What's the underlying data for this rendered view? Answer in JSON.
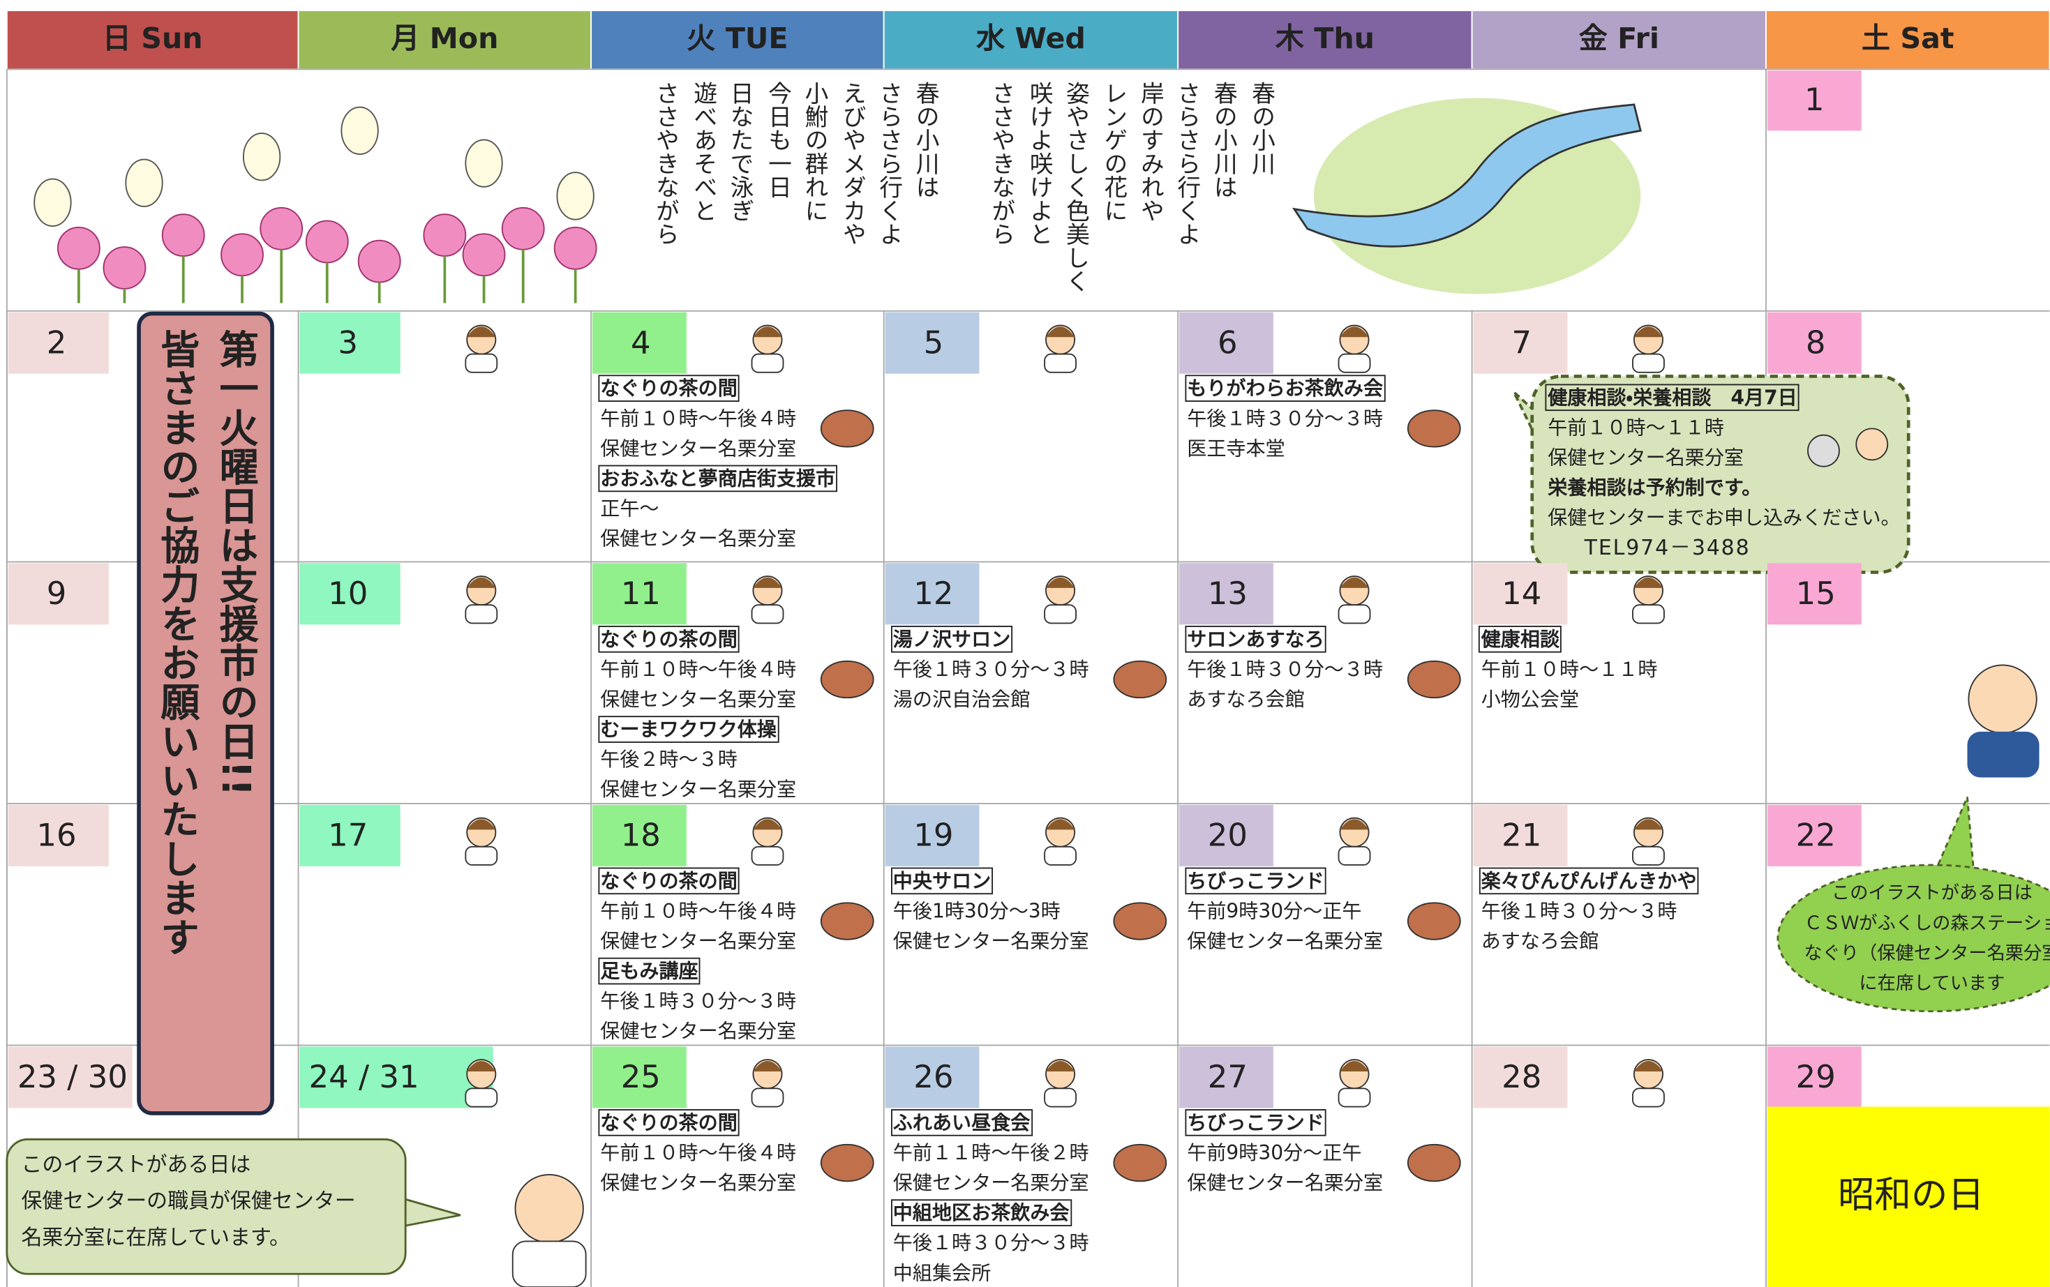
{
  "header": {
    "days": [
      "日 Sun",
      "月 Mon",
      "火 TUE",
      "水 Wed",
      "木 Thu",
      "金 Fri",
      "土 Sat"
    ]
  },
  "poem": {
    "lines": [
      "春の小川",
      "春の小川は",
      "さらさら行くよ",
      "岸のすみれや",
      "レンゲの花に",
      "姿やさしく色美しく",
      "咲けよ咲けよと",
      "ささやきながら",
      "春の小川は",
      "さらさら行くよ",
      "えびやメダカや",
      "小鮒の群れに",
      "今日も一日",
      "日なたで泳ぎ",
      "遊べあそべと",
      "ささやきながら"
    ]
  },
  "top_row": {
    "day": "1"
  },
  "side_banner": {
    "lines": [
      "第一火曜日は支援市の日!!",
      "皆さまのご協力をお願いいたします"
    ]
  },
  "weeks": [
    {
      "days": [
        {
          "day": "2"
        },
        {
          "day": "3"
        },
        {
          "day": "4",
          "events": [
            {
              "title": "なぐりの茶の間",
              "lines": [
                "午前１０時～午後４時",
                "保健センター名栗分室"
              ]
            },
            {
              "title": "おおふなと夢商店街支援市",
              "lines": [
                "正午～",
                "保健センター名栗分室"
              ]
            }
          ]
        },
        {
          "day": "5"
        },
        {
          "day": "6",
          "events": [
            {
              "title": "もりがわらお茶飲み会",
              "lines": [
                "午後１時３０分～３時",
                "医王寺本堂"
              ]
            }
          ]
        },
        {
          "day": "7",
          "callout": {
            "lines": [
              "健康相談・栄養相談　4月7日",
              "午前１０時～１１時",
              "保健センター名栗分室",
              "栄養相談は予約制です。",
              "保健センターまでお申し込みください。",
              "TEL974－3488"
            ]
          }
        },
        {
          "day": "8"
        }
      ]
    },
    {
      "days": [
        {
          "day": "9"
        },
        {
          "day": "10"
        },
        {
          "day": "11",
          "events": [
            {
              "title": "なぐりの茶の間",
              "lines": [
                "午前１０時～午後４時",
                "保健センター名栗分室"
              ]
            },
            {
              "title": "むーまワクワク体操",
              "lines": [
                "午後２時～３時",
                "保健センター名栗分室"
              ]
            }
          ]
        },
        {
          "day": "12",
          "events": [
            {
              "title": "湯ノ沢サロン",
              "lines": [
                "午後１時３０分～３時",
                "湯の沢自治会館"
              ]
            }
          ]
        },
        {
          "day": "13",
          "events": [
            {
              "title": "サロンあすなろ",
              "lines": [
                "午後１時３０分～３時",
                "あすなろ会館"
              ]
            }
          ]
        },
        {
          "day": "14",
          "events": [
            {
              "title": "健康相談",
              "lines": [
                "午前１０時～１１時",
                "小物公会堂"
              ]
            }
          ]
        },
        {
          "day": "15"
        }
      ]
    },
    {
      "days": [
        {
          "day": "16"
        },
        {
          "day": "17"
        },
        {
          "day": "18",
          "events": [
            {
              "title": "なぐりの茶の間",
              "lines": [
                "午前１０時～午後４時",
                "保健センター名栗分室"
              ]
            },
            {
              "title": "足もみ講座",
              "lines": [
                "午後１時３０分～３時",
                "保健センター名栗分室"
              ]
            }
          ]
        },
        {
          "day": "19",
          "events": [
            {
              "title": "中央サロン",
              "lines": [
                "午後1時30分～3時",
                "保健センター名栗分室"
              ]
            }
          ]
        },
        {
          "day": "20",
          "events": [
            {
              "title": "ちびっこランド",
              "lines": [
                "午前9時30分～正午",
                "保健センター名栗分室"
              ]
            }
          ]
        },
        {
          "day": "21",
          "events": [
            {
              "title": "楽々ぴんぴんげんきかや",
              "lines": [
                "午後１時３０分～３時",
                "あすなろ会館"
              ]
            }
          ]
        },
        {
          "day": "22",
          "callout": {
            "lines": [
              "このイラストがある日は",
              "ＣＳＷがふくしの森ステーショ",
              "なぐり（保健センター名栗分室",
              "に在席しています"
            ]
          }
        }
      ]
    },
    {
      "days": [
        {
          "day": "23 / 30"
        },
        {
          "day": "24 / 31"
        },
        {
          "day": "25",
          "events": [
            {
              "title": "なぐりの茶の間",
              "lines": [
                "午前１０時～午後４時",
                "保健センター名栗分室"
              ]
            }
          ]
        },
        {
          "day": "26",
          "events": [
            {
              "title": "ふれあい昼食会",
              "lines": [
                "午前１１時～午後２時",
                "保健センター名栗分室"
              ]
            },
            {
              "title": "中組地区お茶飲み会",
              "lines": [
                "午後１時３０分～３時",
                "中組集会所"
              ]
            }
          ]
        },
        {
          "day": "27",
          "events": [
            {
              "title": "ちびっこランド",
              "lines": [
                "午前9時30分～正午",
                "保健センター名栗分室"
              ]
            }
          ]
        },
        {
          "day": "28"
        },
        {
          "day": "29",
          "holiday": "昭和の日"
        }
      ]
    }
  ],
  "note": {
    "lines": [
      "このイラストがある日は",
      "保健センターの職員が保健センター",
      "名栗分室に在席しています。"
    ]
  }
}
